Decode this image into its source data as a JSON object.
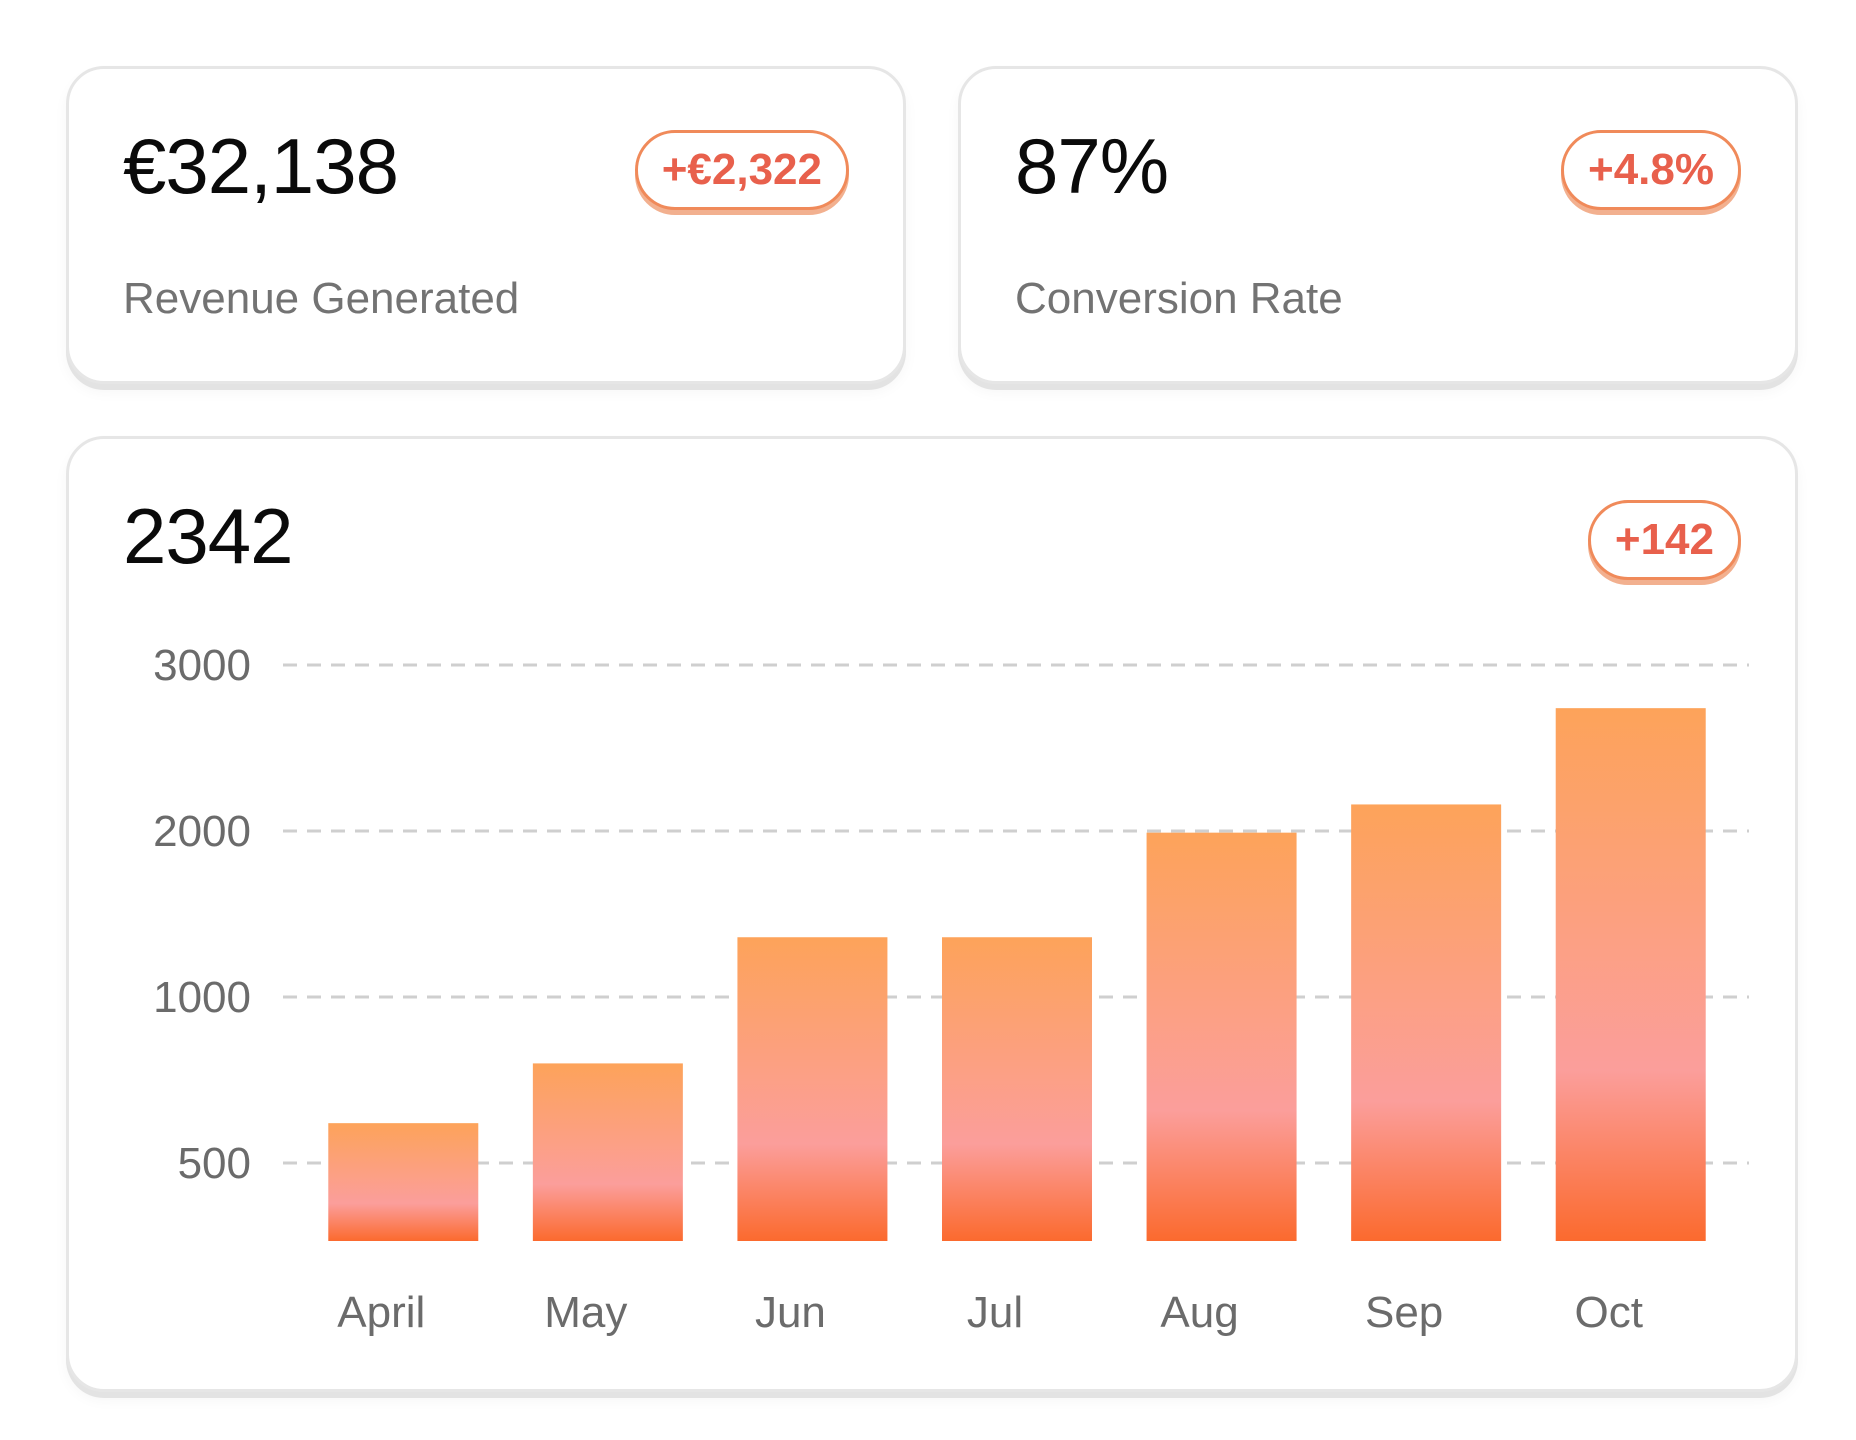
{
  "revenue_card": {
    "value": "€32,138",
    "delta": "+€2,322",
    "label": "Revenue Generated"
  },
  "conversion_card": {
    "value": "87%",
    "delta": "+4.8%",
    "label": "Conversion Rate"
  },
  "chart_card": {
    "value": "2342",
    "delta": "+142"
  },
  "colors": {
    "accent": "#e8604c",
    "bar_top": "#fda35a",
    "bar_mid": "#fb9e9b",
    "bar_bottom": "#fb6a2e",
    "grid": "#cfcfcf"
  },
  "chart_data": {
    "type": "bar",
    "title": "",
    "xlabel": "",
    "ylabel": "",
    "categories": [
      "April",
      "May",
      "Jun",
      "Jul",
      "Aug",
      "Sep",
      "Oct"
    ],
    "values": [
      620,
      800,
      1360,
      1360,
      1990,
      2160,
      2740
    ],
    "yticks": [
      {
        "value": 500,
        "label": "500"
      },
      {
        "value": 1000,
        "label": "1000"
      },
      {
        "value": 2000,
        "label": "2000"
      },
      {
        "value": 3000,
        "label": "3000"
      }
    ],
    "grid": true,
    "legend": "none"
  }
}
